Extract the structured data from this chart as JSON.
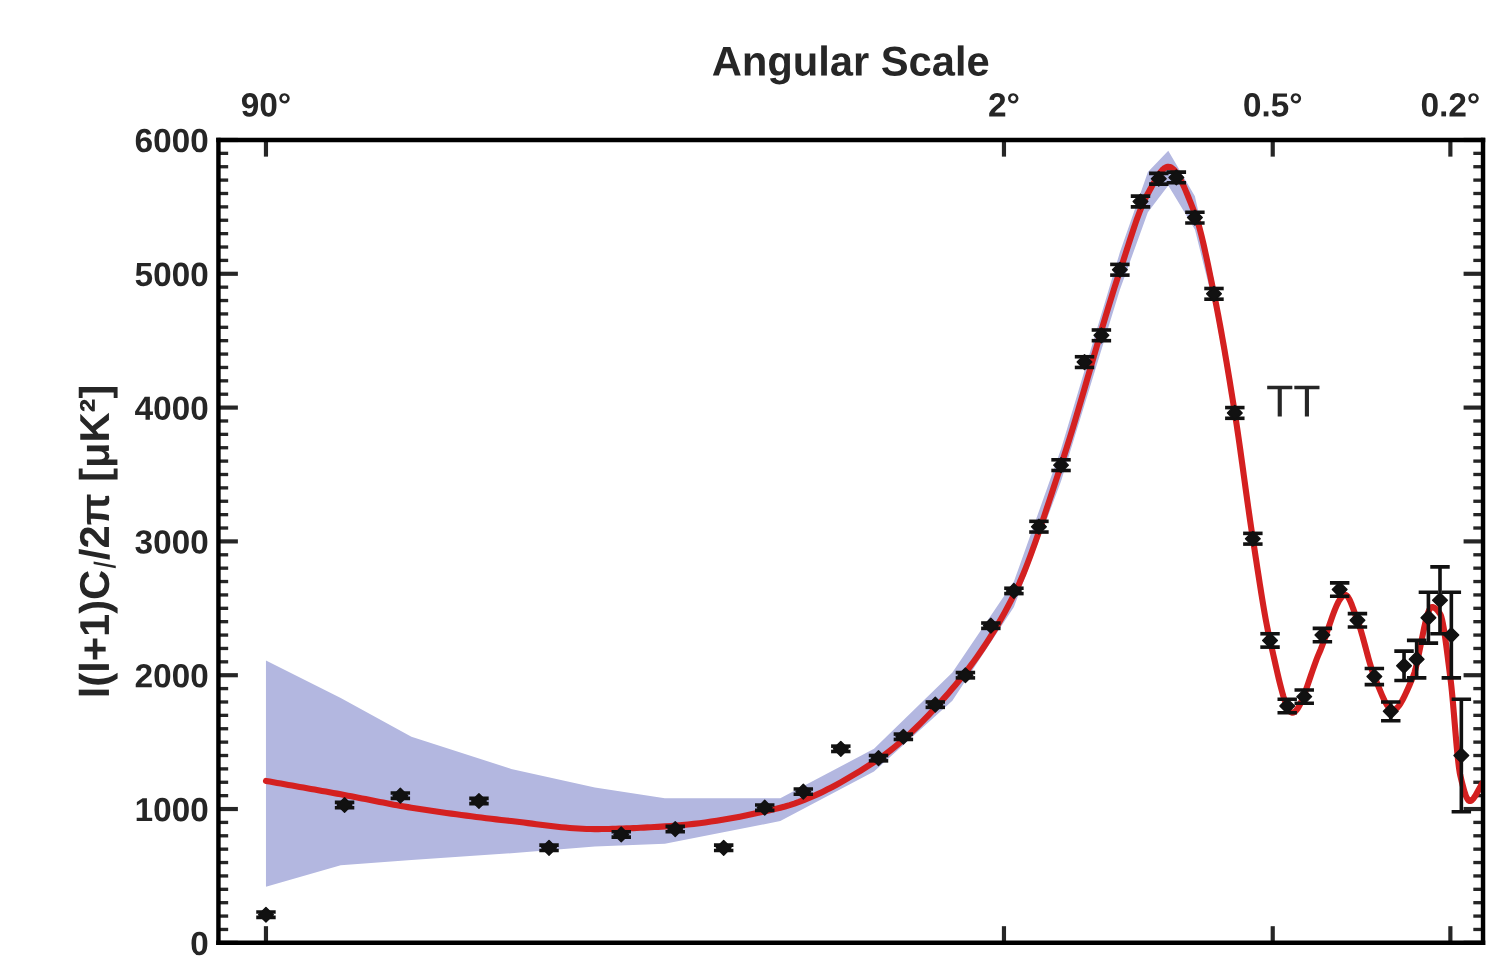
{
  "chart_data": {
    "type": "scatter",
    "xlabel": "Angular Scale",
    "ylabel": "l(l+1)C$_{l}$/2π [μK²]",
    "annotations": [
      "TT"
    ],
    "log": "x",
    "xlim": [
      115,
      0.169
    ],
    "xticks": [
      {
        "value": 90,
        "label": "90°"
      },
      {
        "value": 2,
        "label": "2°"
      },
      {
        "value": 0.5,
        "label": "0.5°"
      },
      {
        "value": 0.2,
        "label": "0.2°"
      }
    ],
    "ylim": [
      0,
      6000
    ],
    "yticks": [
      0,
      1000,
      2000,
      3000,
      4000,
      5000,
      6000
    ],
    "grid": false,
    "legend": false,
    "series": [
      {
        "type": "line",
        "color": "#d42020",
        "line_style": "solid",
        "marker": "none",
        "x": [
          90,
          61.2,
          42.5,
          25.4,
          16.5,
          11.5,
          6.34,
          3.91,
          2.61,
          1.9,
          1.49,
          1.1,
          0.952,
          0.857,
          0.747,
          0.677,
          0.608,
          0.554,
          0.507,
          0.452,
          0.393,
          0.344,
          0.323,
          0.296,
          0.269,
          0.243,
          0.22,
          0.211,
          0.2,
          0.19,
          0.181,
          0.169
        ],
        "values": [
          1210,
          1110,
          1010,
          910,
          850,
          870,
          1010,
          1350,
          1900,
          2600,
          3570,
          5020,
          5600,
          5800,
          5450,
          4850,
          3960,
          3020,
          2260,
          1720,
          2170,
          2600,
          2410,
          1990,
          1740,
          1980,
          2510,
          2460,
          1980,
          1250,
          1060,
          1200
        ],
        "lower": [
          420,
          580,
          620,
          670,
          720,
          740,
          910,
          1280,
          1810,
          2510,
          3450,
          4880,
          5460,
          5660,
          5330,
          4760,
          3890,
          2970,
          null,
          null,
          null,
          null,
          null,
          null,
          null,
          null,
          null,
          null,
          null,
          null,
          null,
          null
        ],
        "upper": [
          2110,
          1830,
          1540,
          1300,
          1160,
          1080,
          1080,
          1450,
          2020,
          2700,
          3690,
          5160,
          5760,
          5920,
          5580,
          4950,
          4030,
          3070,
          null,
          null,
          null,
          null,
          null,
          null,
          null,
          null,
          null,
          null,
          null,
          null,
          null,
          null
        ]
      },
      {
        "color": "#111111",
        "marker": "diamond",
        "x": [
          90,
          60,
          45,
          30,
          20.9,
          14.4,
          10.9,
          8.49,
          6.87,
          5.63,
          4.64,
          3.82,
          3.36,
          2.85,
          2.44,
          2.14,
          1.9,
          1.67,
          1.49,
          1.32,
          1.21,
          1.1,
          0.989,
          0.9,
          0.822,
          0.747,
          0.677,
          0.608,
          0.554,
          0.507,
          0.464,
          0.425,
          0.387,
          0.354,
          0.323,
          0.296,
          0.272,
          0.254,
          0.238,
          0.224,
          0.211,
          0.199,
          0.189
        ],
        "values": [
          210,
          1030,
          1100,
          1060,
          710,
          810,
          850,
          710,
          1010,
          1130,
          1450,
          1380,
          1540,
          1780,
          2000,
          2370,
          2630,
          3110,
          3570,
          4340,
          4540,
          5030,
          5540,
          5710,
          5720,
          5420,
          4850,
          3960,
          3020,
          2260,
          1770,
          1840,
          2300,
          2640,
          2410,
          1990,
          1730,
          2070,
          2120,
          2430,
          2560,
          2300,
          1400
        ],
        "errors": [
          20,
          20,
          20,
          20,
          20,
          20,
          20,
          20,
          20,
          20,
          20,
          20,
          20,
          20,
          20,
          20,
          20,
          40,
          40,
          40,
          40,
          40,
          40,
          40,
          40,
          40,
          40,
          40,
          40,
          50,
          50,
          50,
          50,
          50,
          50,
          60,
          70,
          110,
          140,
          190,
          250,
          320,
          420
        ]
      }
    ]
  }
}
